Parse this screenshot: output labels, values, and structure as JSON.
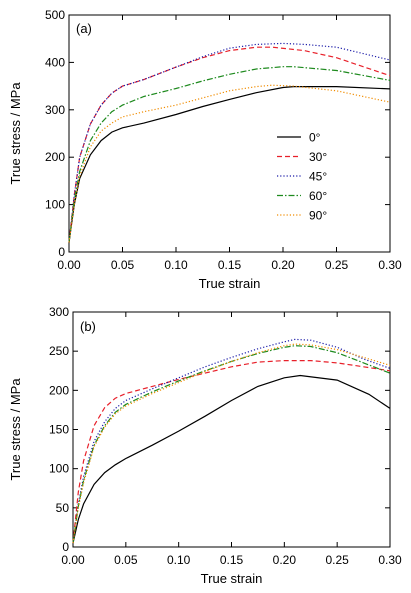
{
  "chart_data": [
    {
      "type": "line",
      "panel_label": "(a)",
      "xlabel": "True strain",
      "ylabel": "True stress / MPa",
      "xlim": [
        0,
        0.3
      ],
      "ylim": [
        0,
        500
      ],
      "xticks": [
        "0.00",
        "0.05",
        "0.10",
        "0.15",
        "0.20",
        "0.25",
        "0.30"
      ],
      "yticks": [
        "0",
        "100",
        "200",
        "300",
        "400",
        "500"
      ],
      "grid": false,
      "legend_position": "center-right",
      "series": [
        {
          "name": "0°",
          "color": "#000000",
          "dash": "solid",
          "x": [
            0,
            0.005,
            0.01,
            0.02,
            0.03,
            0.04,
            0.05,
            0.07,
            0.1,
            0.125,
            0.15,
            0.175,
            0.2,
            0.21,
            0.25,
            0.3
          ],
          "y": [
            20,
            100,
            155,
            205,
            235,
            253,
            262,
            272,
            290,
            307,
            322,
            336,
            347,
            349,
            349,
            344
          ]
        },
        {
          "name": "30°",
          "color": "#e8202a",
          "dash": "dashed",
          "x": [
            0,
            0.005,
            0.01,
            0.02,
            0.03,
            0.04,
            0.05,
            0.07,
            0.1,
            0.125,
            0.15,
            0.175,
            0.19,
            0.22,
            0.25,
            0.3
          ],
          "y": [
            20,
            120,
            200,
            270,
            310,
            335,
            350,
            364,
            390,
            410,
            425,
            432,
            432,
            425,
            410,
            372
          ]
        },
        {
          "name": "45°",
          "color": "#1b1ba8",
          "dash": "dotted",
          "x": [
            0,
            0.005,
            0.01,
            0.02,
            0.03,
            0.04,
            0.05,
            0.07,
            0.1,
            0.125,
            0.15,
            0.175,
            0.2,
            0.22,
            0.25,
            0.3
          ],
          "y": [
            20,
            120,
            200,
            270,
            310,
            335,
            350,
            364,
            390,
            412,
            430,
            438,
            440,
            438,
            432,
            405
          ]
        },
        {
          "name": "60°",
          "color": "#1e8a1e",
          "dash": "dashdot",
          "x": [
            0,
            0.005,
            0.01,
            0.02,
            0.03,
            0.04,
            0.05,
            0.07,
            0.1,
            0.125,
            0.15,
            0.175,
            0.2,
            0.21,
            0.25,
            0.3
          ],
          "y": [
            20,
            110,
            170,
            235,
            272,
            296,
            310,
            328,
            345,
            361,
            375,
            386,
            391,
            391,
            383,
            362
          ]
        },
        {
          "name": "90°",
          "color": "#f08c00",
          "dash": "dotted",
          "x": [
            0,
            0.005,
            0.01,
            0.02,
            0.03,
            0.04,
            0.05,
            0.07,
            0.1,
            0.125,
            0.15,
            0.175,
            0.19,
            0.21,
            0.25,
            0.3
          ],
          "y": [
            20,
            100,
            160,
            222,
            255,
            272,
            285,
            296,
            310,
            325,
            340,
            349,
            352,
            350,
            340,
            316
          ]
        }
      ]
    },
    {
      "type": "line",
      "panel_label": "(b)",
      "xlabel": "True strain",
      "ylabel": "True stress / MPa",
      "xlim": [
        0,
        0.3
      ],
      "ylim": [
        0,
        300
      ],
      "xticks": [
        "0.00",
        "0.05",
        "0.10",
        "0.15",
        "0.20",
        "0.25",
        "0.30"
      ],
      "yticks": [
        "0",
        "50",
        "100",
        "150",
        "200",
        "250",
        "300"
      ],
      "grid": false,
      "series": [
        {
          "name": "0°",
          "color": "#000000",
          "dash": "solid",
          "x": [
            0,
            0.005,
            0.01,
            0.02,
            0.03,
            0.04,
            0.05,
            0.075,
            0.1,
            0.125,
            0.15,
            0.175,
            0.2,
            0.215,
            0.25,
            0.28,
            0.3
          ],
          "y": [
            5,
            35,
            55,
            80,
            95,
            105,
            113,
            130,
            148,
            167,
            187,
            205,
            216,
            219,
            213,
            195,
            177
          ]
        },
        {
          "name": "30°",
          "color": "#e8202a",
          "dash": "dashed",
          "x": [
            0,
            0.005,
            0.01,
            0.02,
            0.03,
            0.04,
            0.05,
            0.075,
            0.1,
            0.125,
            0.15,
            0.175,
            0.2,
            0.225,
            0.25,
            0.275,
            0.3
          ],
          "y": [
            5,
            70,
            110,
            155,
            178,
            190,
            196,
            205,
            214,
            222,
            230,
            236,
            238,
            238,
            235,
            230,
            225
          ]
        },
        {
          "name": "45°",
          "color": "#1b1ba8",
          "dash": "dotted",
          "x": [
            0,
            0.005,
            0.01,
            0.02,
            0.03,
            0.04,
            0.05,
            0.075,
            0.1,
            0.125,
            0.15,
            0.175,
            0.2,
            0.21,
            0.225,
            0.25,
            0.275,
            0.3
          ],
          "y": [
            5,
            55,
            90,
            135,
            160,
            177,
            187,
            202,
            216,
            230,
            242,
            253,
            262,
            265,
            264,
            255,
            240,
            228
          ]
        },
        {
          "name": "60°",
          "color": "#1e8a1e",
          "dash": "dashdot",
          "x": [
            0,
            0.005,
            0.01,
            0.02,
            0.03,
            0.04,
            0.05,
            0.075,
            0.1,
            0.125,
            0.15,
            0.175,
            0.2,
            0.21,
            0.225,
            0.25,
            0.275,
            0.3
          ],
          "y": [
            5,
            52,
            85,
            130,
            155,
            172,
            182,
            198,
            212,
            225,
            237,
            247,
            255,
            257,
            256,
            248,
            235,
            222
          ]
        },
        {
          "name": "90°",
          "color": "#f08c00",
          "dash": "dotted",
          "x": [
            0,
            0.005,
            0.01,
            0.02,
            0.03,
            0.04,
            0.05,
            0.075,
            0.1,
            0.125,
            0.15,
            0.175,
            0.2,
            0.21,
            0.225,
            0.25,
            0.275,
            0.3
          ],
          "y": [
            5,
            50,
            82,
            128,
            153,
            170,
            180,
            196,
            210,
            224,
            237,
            248,
            257,
            259,
            258,
            252,
            242,
            232
          ]
        }
      ]
    }
  ]
}
